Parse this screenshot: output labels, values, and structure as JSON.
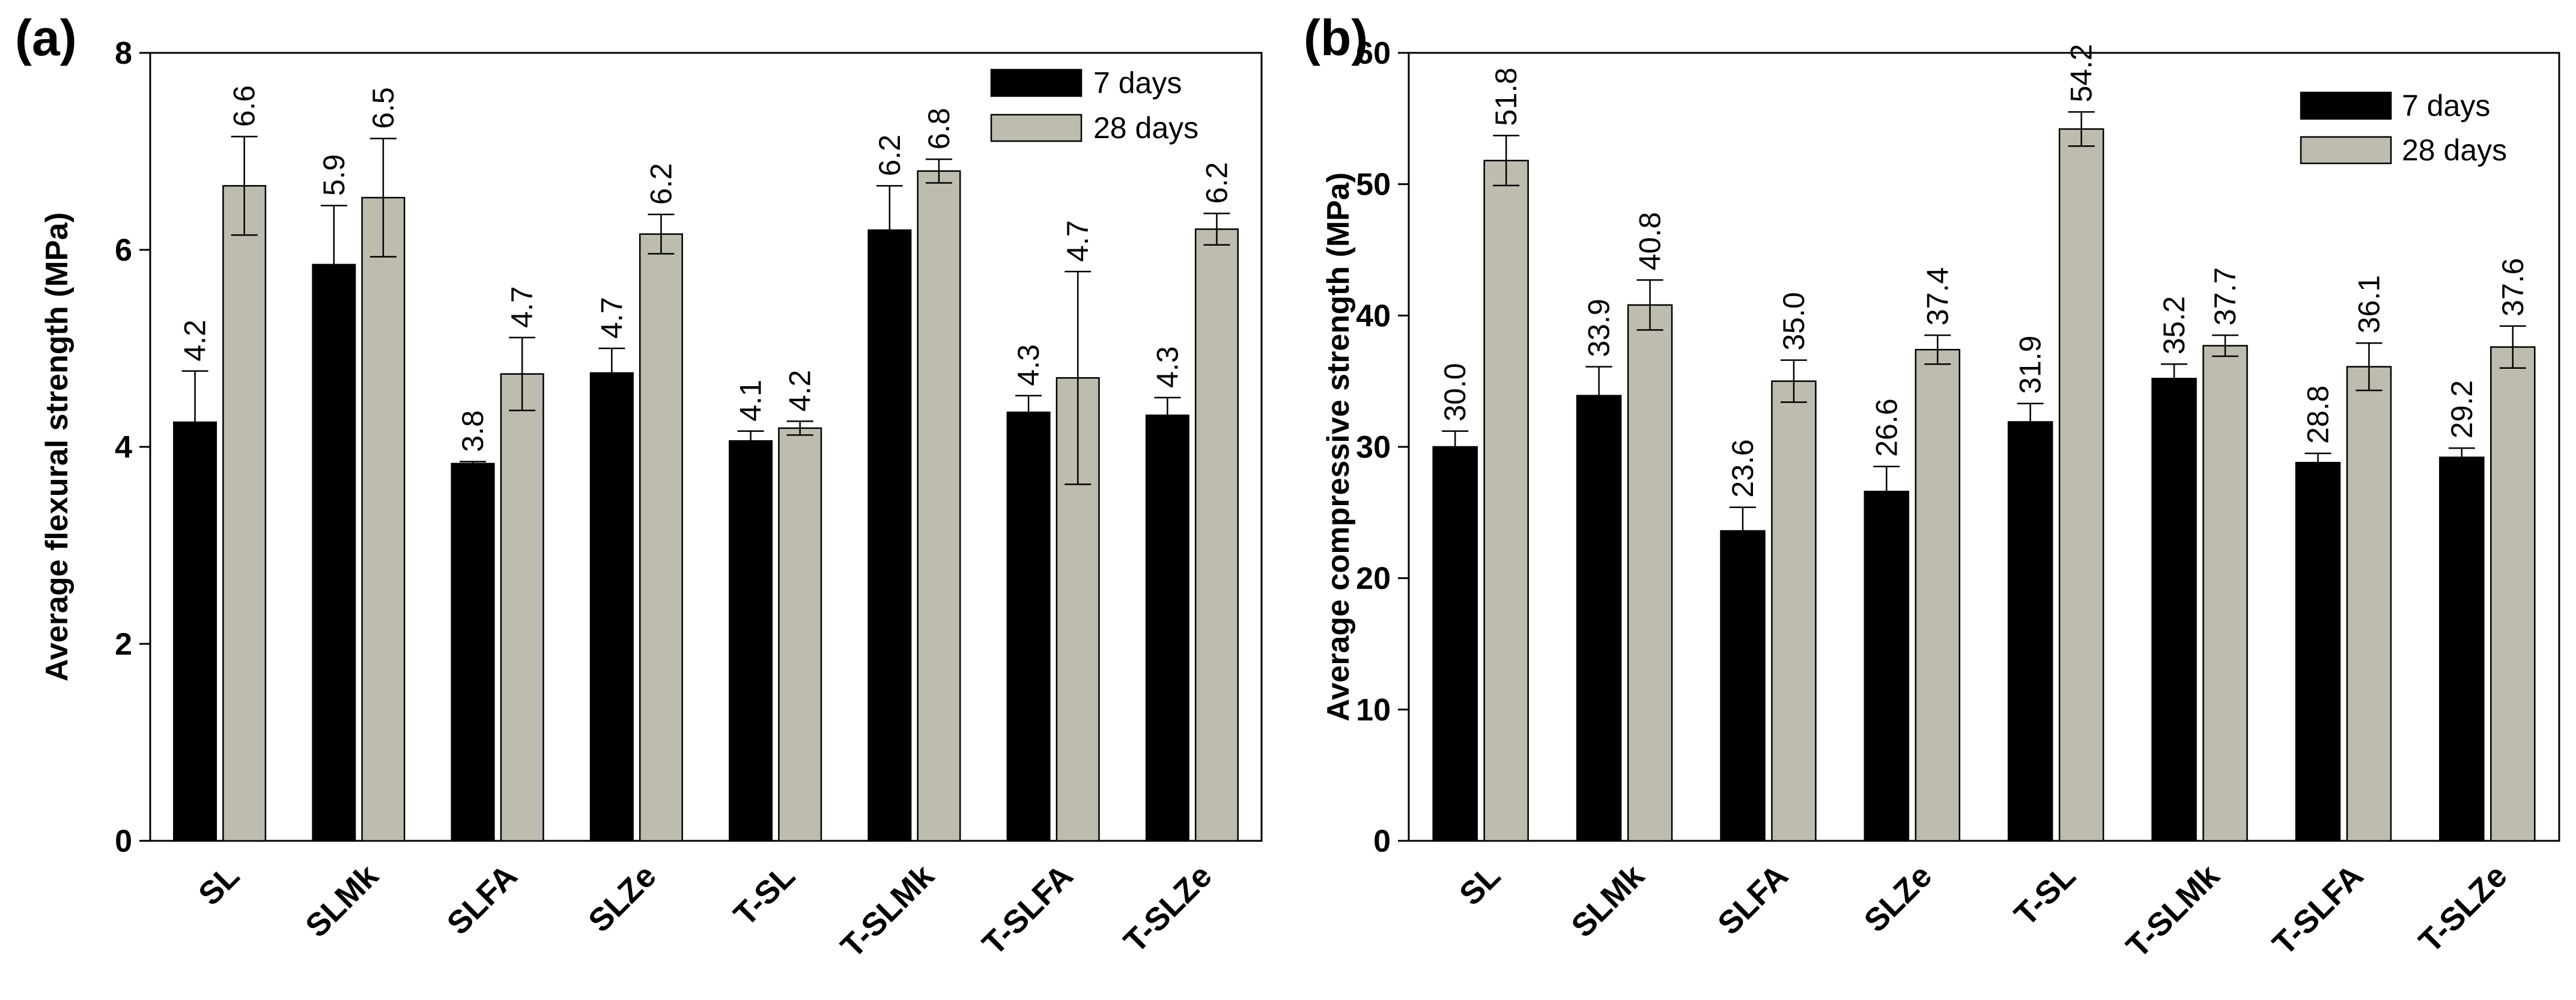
{
  "chart_data": [
    {
      "type": "bar",
      "panel_label": "(a)",
      "ylabel": "Average flexural strength (MPa)",
      "ylim": [
        0,
        8
      ],
      "yticks": [
        "0",
        "2",
        "4",
        "6",
        "8"
      ],
      "categories": [
        "SL",
        "SLMk",
        "SLFA",
        "SLZe",
        "T-SL",
        "T-SLMk",
        "T-SLFA",
        "T-SLZe"
      ],
      "legend_position": "top-right",
      "series": [
        {
          "name": "7 days",
          "color": "#000000",
          "values": [
            4.25,
            5.85,
            3.83,
            4.75,
            4.06,
            6.2,
            4.35,
            4.32
          ],
          "errors": [
            0.52,
            0.6,
            0.02,
            0.25,
            0.1,
            0.45,
            0.17,
            0.18
          ],
          "labels": [
            "4.2",
            "5.9",
            "3.8",
            "4.7",
            "4.1",
            "6.2",
            "4.3",
            "4.3"
          ]
        },
        {
          "name": "28 days",
          "color": "#bdbcaf",
          "values": [
            6.65,
            6.53,
            4.74,
            6.16,
            4.19,
            6.8,
            4.7,
            6.21
          ],
          "errors": [
            0.5,
            0.6,
            0.37,
            0.2,
            0.07,
            0.12,
            1.08,
            0.16
          ],
          "labels": [
            "6.6",
            "6.5",
            "4.7",
            "6.2",
            "4.2",
            "6.8",
            "4.7",
            "6.2"
          ]
        }
      ]
    },
    {
      "type": "bar",
      "panel_label": "(b)",
      "ylabel": "Average compressive strength (MPa)",
      "ylim": [
        0,
        60
      ],
      "yticks": [
        "0",
        "10",
        "20",
        "30",
        "40",
        "50",
        "60"
      ],
      "categories": [
        "SL",
        "SLMk",
        "SLFA",
        "SLZe",
        "T-SL",
        "T-SLMk",
        "T-SLFA",
        "T-SLZe"
      ],
      "legend_position": "top-right",
      "series": [
        {
          "name": "7 days",
          "color": "#000000",
          "values": [
            30.0,
            33.9,
            23.6,
            26.6,
            31.9,
            35.2,
            28.8,
            29.2
          ],
          "errors": [
            1.2,
            2.2,
            1.8,
            1.9,
            1.4,
            1.1,
            0.7,
            0.7
          ],
          "labels": [
            "30.0",
            "33.9",
            "23.6",
            "26.6",
            "31.9",
            "35.2",
            "28.8",
            "29.2"
          ]
        },
        {
          "name": "28 days",
          "color": "#bdbcaf",
          "values": [
            51.8,
            40.8,
            35.0,
            37.4,
            54.2,
            37.7,
            36.1,
            37.6
          ],
          "errors": [
            1.9,
            1.9,
            1.6,
            1.1,
            1.3,
            0.8,
            1.8,
            1.6
          ],
          "labels": [
            "51.8",
            "40.8",
            "35.0",
            "37.4",
            "54.2",
            "37.7",
            "36.1",
            "37.6"
          ]
        }
      ]
    }
  ]
}
